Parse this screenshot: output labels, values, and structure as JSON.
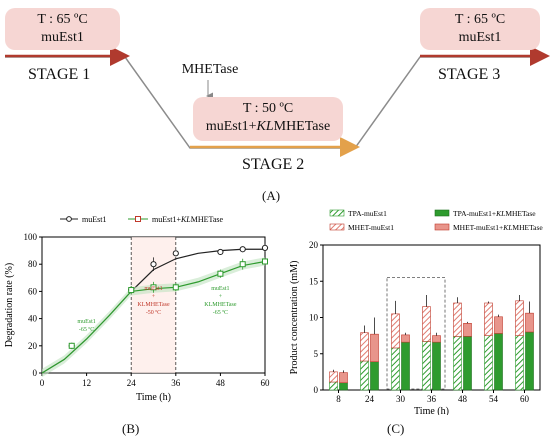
{
  "top": {
    "stage1": {
      "temp": "T : 65 ºC",
      "enzyme": "muEst1",
      "label": "STAGE 1"
    },
    "stage2": {
      "temp": "T : 50 ºC",
      "enzyme_prefix": "muEst1+",
      "enzyme_italic": "KL",
      "enzyme_suffix": "MHETase",
      "label": "STAGE 2",
      "added": "MHETase"
    },
    "stage3": {
      "temp": "T : 65 ºC",
      "enzyme": "muEst1",
      "label": "STAGE 3"
    },
    "panel_label": "(A)",
    "colors": {
      "pink_box": "#f6d6d3",
      "path_line": "#8c8c8c",
      "arrow_red": "#b03a2e",
      "arrow_orange": "#e3a14b"
    }
  },
  "panelB": {
    "panel_label": "(B)",
    "legend": [
      {
        "label": "muEst1",
        "color": "#222222"
      },
      {
        "label_prefix": "muEst1+",
        "label_italic": "KL",
        "label_suffix": "MHETase",
        "color": "#2e9b2e"
      }
    ],
    "annotations": [
      {
        "lines": [
          "muEst1",
          "-65 ºC"
        ],
        "color": "#2e9b2e"
      },
      {
        "lines": [
          "muEst1",
          "+",
          "KLMHETase",
          "-50 ºC"
        ],
        "color": "#c0392b"
      },
      {
        "lines": [
          "muEst1",
          "+",
          "KLMHETase",
          "-65 ºC"
        ],
        "color": "#2e9b2e"
      }
    ]
  },
  "panelC": {
    "panel_label": "(C)",
    "legend": [
      {
        "label": "TPA-muEst1",
        "pattern": "hatch-green"
      },
      {
        "label_prefix": "TPA-muEst1+",
        "label_italic": "KL",
        "label_suffix": "MHETase",
        "pattern": "solid-green"
      },
      {
        "label": "MHET-muEst1",
        "pattern": "hatch-red"
      },
      {
        "label_prefix": "MHET-muEst1+",
        "label_italic": "KL",
        "label_suffix": "MHETase",
        "pattern": "solid-red"
      }
    ]
  },
  "chart_data": [
    {
      "type": "line",
      "xlabel": "Time (h)",
      "ylabel": "Degradation rate (%)",
      "xlim": [
        0,
        60
      ],
      "ylim": [
        0,
        100
      ],
      "xticks": [
        0,
        12,
        24,
        36,
        48,
        60
      ],
      "yticks": [
        0,
        20,
        40,
        60,
        80,
        100
      ],
      "series": [
        {
          "name": "muEst1",
          "color": "#222222",
          "marker": "circle-open",
          "x": [
            8,
            24,
            30,
            36,
            48,
            54,
            60
          ],
          "y": [
            20,
            61,
            80,
            88,
            89,
            91,
            92
          ],
          "err": [
            2,
            3,
            5,
            2,
            2,
            2,
            3
          ],
          "fit_x": [
            0,
            6,
            12,
            18,
            24,
            30,
            36,
            42,
            48,
            54,
            60
          ],
          "fit_y": [
            0,
            10,
            25,
            42,
            60,
            76,
            84,
            88,
            90,
            91,
            91
          ]
        },
        {
          "name": "muEst1+KLMHETase",
          "color": "#2e9b2e",
          "marker": "square-open",
          "x": [
            8,
            24,
            30,
            36,
            48,
            54,
            60
          ],
          "y": [
            20,
            61,
            63,
            63,
            73,
            80,
            82
          ],
          "err": [
            2,
            3,
            4,
            3,
            3,
            4,
            2
          ],
          "fit_x": [
            0,
            6,
            12,
            18,
            24,
            30,
            36,
            42,
            48,
            54,
            60
          ],
          "fit_y": [
            0,
            10,
            25,
            42,
            60,
            62,
            63,
            67,
            73,
            79,
            82
          ]
        }
      ],
      "shaded_window_x": [
        24,
        36
      ]
    },
    {
      "type": "bar",
      "xlabel": "Time (h)",
      "ylabel": "Product concentration (mM)",
      "ylim": [
        0,
        20
      ],
      "yticks": [
        0,
        5,
        10,
        15,
        20
      ],
      "categories": [
        "8",
        "24",
        "30",
        "36",
        "48",
        "54",
        "60"
      ],
      "series": [
        {
          "name": "TPA-muEst1",
          "values": [
            1.1,
            4.0,
            5.8,
            6.7,
            7.4,
            7.5,
            7.5
          ],
          "stack": "muEst1",
          "color": "#2e9b2e",
          "pattern": "hatch"
        },
        {
          "name": "MHET-muEst1",
          "values": [
            1.4,
            3.9,
            4.7,
            4.8,
            4.6,
            4.5,
            4.8
          ],
          "stack": "muEst1",
          "color": "#c0392b",
          "pattern": "hatch"
        },
        {
          "name": "TPA-muEst1+KLMHETase",
          "values": [
            1.0,
            3.9,
            6.6,
            6.6,
            7.4,
            7.8,
            8.0
          ],
          "stack": "muEst1+KLMHETase",
          "color": "#2e9b2e",
          "pattern": "solid"
        },
        {
          "name": "MHET-muEst1+KLMHETase",
          "values": [
            1.4,
            3.8,
            1.0,
            0.9,
            1.8,
            2.3,
            2.6
          ],
          "stack": "muEst1+KLMHETase",
          "color": "#c0392b",
          "pattern": "solid"
        }
      ],
      "total_errors": {
        "muEst1": [
          0.3,
          1.0,
          1.8,
          1.6,
          0.8,
          0.2,
          0.8
        ],
        "muEst1+KLMHETase": [
          0.3,
          2.3,
          0.3,
          0.4,
          0.2,
          0.3,
          1.6
        ]
      },
      "highlight_categories": [
        "30",
        "36"
      ]
    }
  ]
}
